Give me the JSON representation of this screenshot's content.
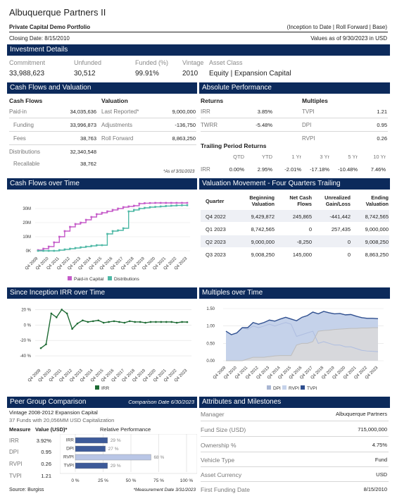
{
  "header": {
    "title": "Albuquerque Partners II",
    "subtitle": "Private Capital Demo Portfolio",
    "meta_right": "(Inception to Date | Roll Forward | Base)",
    "closing_date": "Closing Date: 8/15/2010",
    "values_as_of": "Values as of 9/30/2023 in USD"
  },
  "investment": {
    "section_title": "Investment Details",
    "labels": [
      "Commitment",
      "Unfunded",
      "Funded (%)",
      "Vintage",
      "Asset Class"
    ],
    "values": [
      "33,988,623",
      "30,512",
      "99.91%",
      "2010",
      "Equity | Expansion Capital"
    ]
  },
  "cashflows": {
    "section_title": "Cash Flows and Valuation",
    "cf_header": "Cash Flows",
    "val_header": "Valuation",
    "rows": [
      {
        "label": "Paid-in",
        "value": "34,035,636"
      },
      {
        "label": "Funding",
        "value": "33,996,873"
      },
      {
        "label": "Fees",
        "value": "38,763"
      },
      {
        "label": "Distributions",
        "value": "32,340,548"
      },
      {
        "label": "Recallable",
        "value": "38,762"
      }
    ],
    "val_rows": [
      {
        "label": "Last Reported*",
        "value": "9,000,000"
      },
      {
        "label": "Adjustments",
        "value": "-136,750"
      },
      {
        "label": "Roll Forward",
        "value": "8,863,250"
      }
    ],
    "footnote": "*As of 3/31/2023"
  },
  "performance": {
    "section_title": "Absolute Performance",
    "returns_header": "Returns",
    "multiples_header": "Multiples",
    "returns": [
      {
        "label": "IRR",
        "value": "3.85%"
      },
      {
        "label": "TWRR",
        "value": "-5.48%"
      }
    ],
    "multiples": [
      {
        "label": "TVPI",
        "value": "1.21"
      },
      {
        "label": "DPI",
        "value": "0.95"
      },
      {
        "label": "RVPI",
        "value": "0.26"
      }
    ],
    "trailing_header": "Trailing Period Returns",
    "trailing_cols": [
      "QTD",
      "YTD",
      "1 Yr",
      "3 Yr",
      "5 Yr",
      "10 Yr"
    ],
    "trailing_label": "IRR",
    "trailing_values": [
      "0.00%",
      "2.95%",
      "-2.01%",
      "-17.18%",
      "-10.48%",
      "7.46%"
    ]
  },
  "cf_time": {
    "section_title": "Cash Flows over Time",
    "legend": [
      "Paid-in Capital",
      "Distributions"
    ],
    "colors": {
      "paidin": "#c55bc9",
      "dist": "#4fb9a6"
    },
    "y_ticks": [
      "30M",
      "20M",
      "10M",
      "0K"
    ],
    "x_labels": [
      "Q4 2009",
      "Q4 2010",
      "Q4 2011",
      "Q4 2012",
      "Q4 2013",
      "Q4 2014",
      "Q4 2015",
      "Q4 2016",
      "Q4 2017",
      "Q4 2018",
      "Q4 2019",
      "Q4 2020",
      "Q4 2021",
      "Q4 2022",
      "Q4 2023"
    ]
  },
  "valuation_movement": {
    "section_title": "Valuation Movement - Four Quarters Trailing",
    "columns": [
      "Quarter",
      "Beginning Valuation",
      "Net Cash Flows",
      "Unrealized Gain/Loss",
      "Ending Valuation"
    ],
    "rows": [
      [
        "Q4 2022",
        "9,429,872",
        "245,865",
        "-441,442",
        "8,742,565"
      ],
      [
        "Q1 2023",
        "8,742,565",
        "0",
        "257,435",
        "9,000,000"
      ],
      [
        "Q2 2023",
        "9,000,000",
        "-8,250",
        "0",
        "9,008,250"
      ],
      [
        "Q3 2023",
        "9,008,250",
        "145,000",
        "0",
        "8,863,250"
      ]
    ]
  },
  "irr_time": {
    "section_title": "Since Inception IRR over Time",
    "legend": [
      "IRR"
    ],
    "y_ticks": [
      "20 %",
      "0 %",
      "-20 %",
      "-40 %"
    ],
    "x_labels": [
      "Q4 2009",
      "Q4 2010",
      "Q4 2011",
      "Q4 2012",
      "Q4 2013",
      "Q4 2014",
      "Q4 2015",
      "Q4 2016",
      "Q4 2017",
      "Q4 2018",
      "Q4 2019",
      "Q4 2020",
      "Q4 2021",
      "Q4 2022",
      "Q4 2023"
    ]
  },
  "multiples_time": {
    "section_title": "Multiples over Time",
    "legend": [
      "DPI",
      "RVPI",
      "TVPI"
    ],
    "y_ticks": [
      "1.50",
      "1.00",
      "0.50",
      "0.00"
    ],
    "x_labels": [
      "Q4 2009",
      "Q4 2010",
      "Q4 2011",
      "Q4 2012",
      "Q4 2013",
      "Q4 2014",
      "Q4 2015",
      "Q4 2016",
      "Q4 2017",
      "Q4 2018",
      "Q4 2019",
      "Q4 2020",
      "Q4 2021",
      "Q4 2022",
      "Q4 2023"
    ]
  },
  "peer": {
    "section_title": "Peer Group Comparison",
    "comparison_date": "Comparison Date 6/30/2023",
    "vintage_line": "Vintage 2008-2012 Expansion Capital",
    "funds_line": "37 Funds with 20,056MM USD Capitalization",
    "col_measure": "Measure",
    "col_value": "Value (USD)*",
    "col_rel": "Relative Performance",
    "rows": [
      {
        "label": "IRR",
        "value": "3.92%",
        "pct": "29 %"
      },
      {
        "label": "DPI",
        "value": "0.95",
        "pct": "27 %"
      },
      {
        "label": "RVPI",
        "value": "0.26",
        "pct": "68 %"
      },
      {
        "label": "TVPI",
        "value": "1.21",
        "pct": "29 %"
      }
    ],
    "axis": [
      "0 %",
      "25 %",
      "50 %",
      "75 %",
      "100 %"
    ],
    "source": "Source: Burgiss",
    "measurement": "*Measurement Date 3/31/2023"
  },
  "attributes": {
    "section_title": "Attributes and Milestones",
    "rows": [
      {
        "label": "Manager",
        "value": "Albuquerque Partners"
      },
      {
        "label": "Fund Size (USD)",
        "value": "715,000,000"
      },
      {
        "label": "Ownership %",
        "value": "4.75%"
      },
      {
        "label": "Vehicle Type",
        "value": "Fund"
      },
      {
        "label": "Asset Currency",
        "value": "USD"
      },
      {
        "label": "First Funding Date",
        "value": "8/15/2010"
      }
    ]
  },
  "chart_data": [
    {
      "type": "line",
      "title": "Cash Flows over Time",
      "x": [
        "Q4 2009",
        "Q2 2010",
        "Q4 2010",
        "Q2 2011",
        "Q4 2011",
        "Q2 2012",
        "Q4 2012",
        "Q2 2013",
        "Q4 2013",
        "Q2 2014",
        "Q4 2014",
        "Q2 2015",
        "Q4 2015",
        "Q2 2016",
        "Q4 2016",
        "Q2 2017",
        "Q4 2017",
        "Q2 2018",
        "Q4 2018",
        "Q2 2019",
        "Q4 2019",
        "Q2 2020",
        "Q4 2020",
        "Q2 2021",
        "Q4 2021",
        "Q2 2022",
        "Q4 2022",
        "Q2 2023",
        "Q3 2023"
      ],
      "series": [
        {
          "name": "Paid-in Capital",
          "values": [
            0.5,
            1.5,
            3,
            6,
            10,
            14,
            17,
            19,
            20,
            22,
            24,
            26,
            27,
            28,
            29,
            30,
            31,
            31.5,
            32,
            33.5,
            33.8,
            33.9,
            34,
            34,
            34,
            34,
            34,
            34,
            34
          ]
        },
        {
          "name": "Distributions",
          "values": [
            0,
            0,
            0,
            0,
            0.5,
            1,
            1.5,
            2,
            2.5,
            3,
            3.5,
            4,
            4,
            12,
            14,
            14.5,
            16,
            28,
            29,
            30,
            30.5,
            31,
            31.2,
            31.5,
            31.8,
            32,
            32.2,
            32.3,
            32.34
          ]
        }
      ],
      "ylim": [
        0,
        35
      ],
      "y_unit": "M"
    },
    {
      "type": "line",
      "title": "Since Inception IRR over Time",
      "x": [
        "Q4 2009",
        "Q2 2010",
        "Q4 2010",
        "Q2 2011",
        "Q4 2011",
        "Q2 2012",
        "Q4 2012",
        "Q2 2013",
        "Q4 2013",
        "Q2 2014",
        "Q4 2014",
        "Q2 2015",
        "Q4 2015",
        "Q2 2016",
        "Q4 2016",
        "Q2 2017",
        "Q4 2017",
        "Q2 2018",
        "Q4 2018",
        "Q2 2019",
        "Q4 2019",
        "Q2 2020",
        "Q4 2020",
        "Q2 2021",
        "Q4 2021",
        "Q2 2022",
        "Q4 2022",
        "Q2 2023",
        "Q3 2023"
      ],
      "series": [
        {
          "name": "IRR",
          "values": [
            -30,
            -25,
            15,
            10,
            20,
            15,
            -5,
            2,
            6,
            4,
            5,
            6,
            3,
            4,
            5,
            4,
            3,
            5,
            4,
            4,
            3,
            4,
            4,
            4,
            4,
            4,
            3,
            4,
            3.85
          ]
        }
      ],
      "ylim": [
        -50,
        25
      ],
      "y_unit": "%"
    },
    {
      "type": "area",
      "title": "Multiples over Time",
      "x": [
        "Q4 2009",
        "Q2 2010",
        "Q4 2010",
        "Q2 2011",
        "Q4 2011",
        "Q2 2012",
        "Q4 2012",
        "Q2 2013",
        "Q4 2013",
        "Q2 2014",
        "Q4 2014",
        "Q2 2015",
        "Q4 2015",
        "Q2 2016",
        "Q4 2016",
        "Q2 2017",
        "Q4 2017",
        "Q2 2018",
        "Q4 2018",
        "Q2 2019",
        "Q4 2019",
        "Q2 2020",
        "Q4 2020",
        "Q2 2021",
        "Q4 2021",
        "Q2 2022",
        "Q4 2022",
        "Q2 2023",
        "Q3 2023"
      ],
      "series": [
        {
          "name": "DPI",
          "values": [
            0,
            0,
            0,
            0,
            0.05,
            0.1,
            0.1,
            0.1,
            0.12,
            0.14,
            0.15,
            0.15,
            0.15,
            0.45,
            0.5,
            0.5,
            0.55,
            0.85,
            0.87,
            0.88,
            0.9,
            0.91,
            0.92,
            0.93,
            0.93,
            0.94,
            0.94,
            0.95,
            0.95
          ]
        },
        {
          "name": "RVPI",
          "values": [
            0.85,
            0.75,
            0.8,
            0.95,
            0.9,
            1.0,
            0.95,
            1.0,
            1.05,
            1.0,
            1.05,
            1.1,
            1.05,
            0.7,
            0.75,
            0.8,
            0.85,
            0.5,
            0.55,
            0.5,
            0.45,
            0.45,
            0.4,
            0.4,
            0.35,
            0.3,
            0.28,
            0.27,
            0.26
          ]
        },
        {
          "name": "TVPI",
          "values": [
            0.85,
            0.75,
            0.8,
            0.95,
            0.95,
            1.1,
            1.05,
            1.1,
            1.17,
            1.14,
            1.2,
            1.25,
            1.2,
            1.15,
            1.25,
            1.3,
            1.4,
            1.35,
            1.42,
            1.38,
            1.35,
            1.36,
            1.32,
            1.33,
            1.28,
            1.24,
            1.22,
            1.22,
            1.21
          ]
        }
      ],
      "ylim": [
        0,
        1.5
      ]
    },
    {
      "type": "bar",
      "title": "Relative Performance",
      "categories": [
        "IRR",
        "DPI",
        "RVPI",
        "TVPI"
      ],
      "values": [
        29,
        27,
        68,
        29
      ],
      "ylim": [
        0,
        100
      ]
    }
  ]
}
